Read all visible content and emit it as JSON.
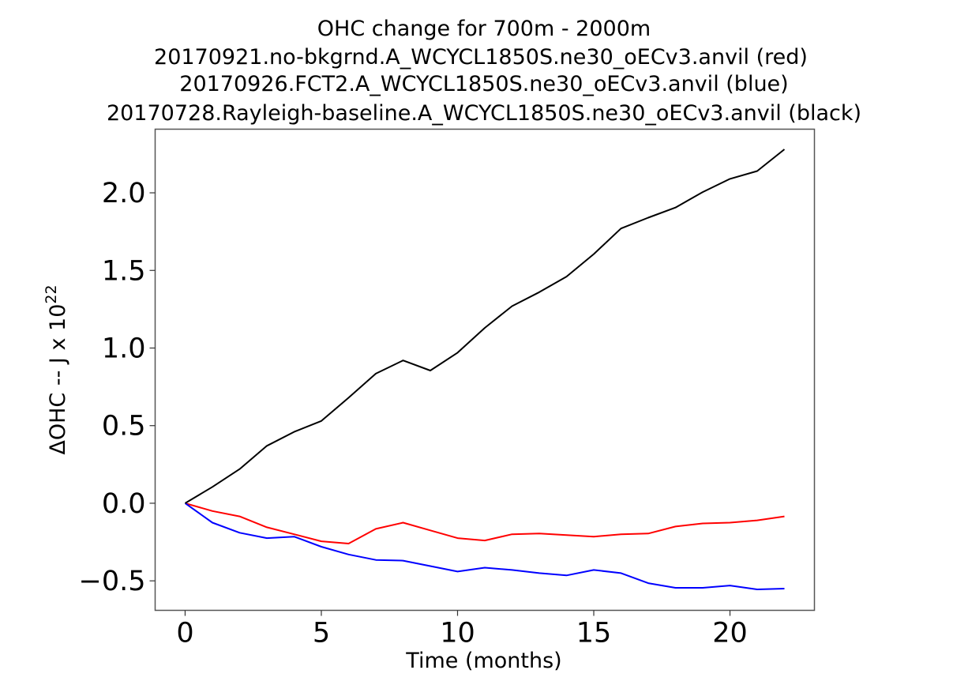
{
  "chart_data": {
    "type": "line",
    "title": "OHC change for 700m - 2000m",
    "subtitle_lines": [
      "20170921.no-bkgrnd.A_WCYCL1850S.ne30_oECv3.anvil (red)",
      "20170926.FCT2.A_WCYCL1850S.ne30_oECv3.anvil (blue)",
      "20170728.Rayleigh-baseline.A_WCYCL1850S.ne30_oECv3.anvil (black)"
    ],
    "xlabel": "Time (months)",
    "ylabel_main": "ΔOHC -- J x 10",
    "ylabel_exponent": "22",
    "xlim": [
      -1.1,
      23.1
    ],
    "ylim": [
      -0.69,
      2.41
    ],
    "xticks": [
      0,
      5,
      10,
      15,
      20
    ],
    "xtick_labels": [
      "0",
      "5",
      "10",
      "15",
      "20"
    ],
    "yticks": [
      -0.5,
      0.0,
      0.5,
      1.0,
      1.5,
      2.0
    ],
    "ytick_labels": [
      "−0.5",
      "0.0",
      "0.5",
      "1.0",
      "1.5",
      "2.0"
    ],
    "grid": false,
    "legend": "none",
    "x": [
      0,
      1,
      2,
      3,
      4,
      5,
      6,
      7,
      8,
      9,
      10,
      11,
      12,
      13,
      14,
      15,
      16,
      17,
      18,
      19,
      20,
      21,
      22
    ],
    "series": [
      {
        "name": "20170921.no-bkgrnd.A_WCYCL1850S.ne30_oECv3.anvil",
        "color": "#ff0000",
        "values": [
          0.0,
          -0.05,
          -0.085,
          -0.155,
          -0.2,
          -0.245,
          -0.26,
          -0.165,
          -0.125,
          -0.175,
          -0.225,
          -0.24,
          -0.2,
          -0.195,
          -0.205,
          -0.215,
          -0.2,
          -0.195,
          -0.15,
          -0.13,
          -0.125,
          -0.11,
          -0.085
        ]
      },
      {
        "name": "20170926.FCT2.A_WCYCL1850S.ne30_oECv3.anvil",
        "color": "#0000ff",
        "values": [
          0.0,
          -0.125,
          -0.19,
          -0.225,
          -0.215,
          -0.28,
          -0.33,
          -0.365,
          -0.37,
          -0.405,
          -0.44,
          -0.415,
          -0.43,
          -0.45,
          -0.465,
          -0.43,
          -0.45,
          -0.515,
          -0.545,
          -0.545,
          -0.53,
          -0.555,
          -0.55
        ]
      },
      {
        "name": "20170728.Rayleigh-baseline.A_WCYCL1850S.ne30_oECv3.anvil",
        "color": "#000000",
        "values": [
          0.0,
          0.105,
          0.22,
          0.37,
          0.46,
          0.53,
          0.68,
          0.835,
          0.92,
          0.855,
          0.97,
          1.13,
          1.27,
          1.36,
          1.46,
          1.605,
          1.77,
          1.84,
          1.905,
          2.005,
          2.09,
          2.14,
          2.28
        ]
      }
    ]
  }
}
